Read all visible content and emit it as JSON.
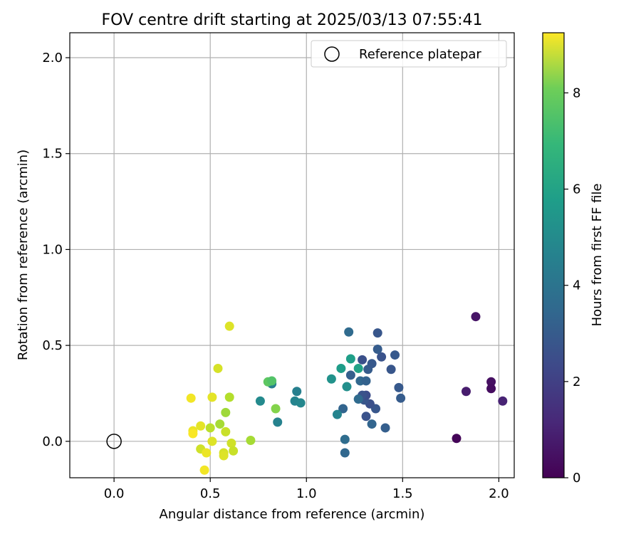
{
  "chart_data": {
    "type": "scatter",
    "title": "FOV centre drift starting at 2025/03/13 07:55:41",
    "xlabel": "Angular distance from reference (arcmin)",
    "ylabel": "Rotation from reference (arcmin)",
    "xlim": [
      -0.23,
      2.08
    ],
    "ylim": [
      -0.19,
      2.13
    ],
    "xticks": [
      0.0,
      0.5,
      1.0,
      1.5,
      2.0
    ],
    "xtick_labels": [
      "0.0",
      "0.5",
      "1.0",
      "1.5",
      "2.0"
    ],
    "yticks": [
      0.0,
      0.5,
      1.0,
      1.5,
      2.0
    ],
    "ytick_labels": [
      "0.0",
      "0.5",
      "1.0",
      "1.5",
      "2.0"
    ],
    "grid": true,
    "legend": {
      "position": "top-right",
      "entries": [
        "Reference platepar"
      ]
    },
    "reference_point": {
      "x": 0.0,
      "y": 0.0,
      "label": "Reference platepar"
    },
    "colorbar": {
      "label": "Hours from first FF file",
      "colormap": "viridis",
      "range": [
        0,
        9.25
      ],
      "ticks": [
        0,
        2,
        4,
        6,
        8
      ],
      "tick_labels": [
        "0",
        "2",
        "4",
        "6",
        "8"
      ]
    },
    "points": [
      {
        "x": 1.78,
        "y": 0.015,
        "h": 0.1
      },
      {
        "x": 1.88,
        "y": 0.65,
        "h": 0.5
      },
      {
        "x": 1.83,
        "y": 0.26,
        "h": 0.7
      },
      {
        "x": 1.96,
        "y": 0.31,
        "h": 0.4
      },
      {
        "x": 1.96,
        "y": 0.275,
        "h": 0.3
      },
      {
        "x": 2.02,
        "y": 0.21,
        "h": 0.9
      },
      {
        "x": 1.37,
        "y": 0.565,
        "h": 2.5
      },
      {
        "x": 1.46,
        "y": 0.45,
        "h": 2.6
      },
      {
        "x": 1.39,
        "y": 0.44,
        "h": 2.4
      },
      {
        "x": 1.37,
        "y": 0.48,
        "h": 2.7
      },
      {
        "x": 1.44,
        "y": 0.375,
        "h": 2.5
      },
      {
        "x": 1.48,
        "y": 0.28,
        "h": 2.6
      },
      {
        "x": 1.49,
        "y": 0.225,
        "h": 2.7
      },
      {
        "x": 1.41,
        "y": 0.07,
        "h": 2.8
      },
      {
        "x": 1.34,
        "y": 0.09,
        "h": 3.0
      },
      {
        "x": 1.31,
        "y": 0.13,
        "h": 2.4
      },
      {
        "x": 1.36,
        "y": 0.17,
        "h": 2.5
      },
      {
        "x": 1.33,
        "y": 0.195,
        "h": 2.3
      },
      {
        "x": 1.3,
        "y": 0.215,
        "h": 2.5
      },
      {
        "x": 1.31,
        "y": 0.24,
        "h": 2.2
      },
      {
        "x": 1.29,
        "y": 0.24,
        "h": 2.4
      },
      {
        "x": 1.27,
        "y": 0.22,
        "h": 3.2
      },
      {
        "x": 1.28,
        "y": 0.315,
        "h": 3.1
      },
      {
        "x": 1.31,
        "y": 0.315,
        "h": 2.9
      },
      {
        "x": 1.32,
        "y": 0.375,
        "h": 2.7
      },
      {
        "x": 1.34,
        "y": 0.405,
        "h": 2.6
      },
      {
        "x": 1.29,
        "y": 0.425,
        "h": 2.3
      },
      {
        "x": 1.23,
        "y": 0.345,
        "h": 2.8
      },
      {
        "x": 1.22,
        "y": 0.57,
        "h": 3.2
      },
      {
        "x": 1.27,
        "y": 0.38,
        "h": 5.3
      },
      {
        "x": 1.23,
        "y": 0.43,
        "h": 5.2
      },
      {
        "x": 1.18,
        "y": 0.38,
        "h": 5.1
      },
      {
        "x": 1.13,
        "y": 0.325,
        "h": 4.7
      },
      {
        "x": 1.21,
        "y": 0.285,
        "h": 4.6
      },
      {
        "x": 1.19,
        "y": 0.17,
        "h": 3.0
      },
      {
        "x": 1.16,
        "y": 0.14,
        "h": 4.2
      },
      {
        "x": 1.2,
        "y": 0.01,
        "h": 3.3
      },
      {
        "x": 1.2,
        "y": -0.06,
        "h": 3.1
      },
      {
        "x": 0.95,
        "y": 0.26,
        "h": 4.0
      },
      {
        "x": 0.94,
        "y": 0.21,
        "h": 4.2
      },
      {
        "x": 0.97,
        "y": 0.2,
        "h": 4.3
      },
      {
        "x": 0.85,
        "y": 0.1,
        "h": 4.1
      },
      {
        "x": 0.82,
        "y": 0.3,
        "h": 4.0
      },
      {
        "x": 0.76,
        "y": 0.21,
        "h": 4.4
      },
      {
        "x": 0.8,
        "y": 0.31,
        "h": 6.9
      },
      {
        "x": 0.82,
        "y": 0.315,
        "h": 6.7
      },
      {
        "x": 0.84,
        "y": 0.17,
        "h": 7.5
      },
      {
        "x": 0.71,
        "y": 0.005,
        "h": 8.0
      },
      {
        "x": 0.6,
        "y": 0.23,
        "h": 8.2
      },
      {
        "x": 0.58,
        "y": 0.15,
        "h": 7.9
      },
      {
        "x": 0.55,
        "y": 0.09,
        "h": 8.0
      },
      {
        "x": 0.5,
        "y": 0.07,
        "h": 8.3
      },
      {
        "x": 0.58,
        "y": 0.05,
        "h": 8.5
      },
      {
        "x": 0.6,
        "y": 0.6,
        "h": 8.8
      },
      {
        "x": 0.54,
        "y": 0.38,
        "h": 8.7
      },
      {
        "x": 0.51,
        "y": 0.23,
        "h": 8.9
      },
      {
        "x": 0.4,
        "y": 0.225,
        "h": 9.1
      },
      {
        "x": 0.45,
        "y": 0.08,
        "h": 8.9
      },
      {
        "x": 0.41,
        "y": 0.055,
        "h": 9.0
      },
      {
        "x": 0.41,
        "y": 0.04,
        "h": 9.2
      },
      {
        "x": 0.51,
        "y": 0.0,
        "h": 8.8
      },
      {
        "x": 0.61,
        "y": -0.01,
        "h": 8.6
      },
      {
        "x": 0.62,
        "y": -0.05,
        "h": 8.5
      },
      {
        "x": 0.57,
        "y": -0.06,
        "h": 8.7
      },
      {
        "x": 0.57,
        "y": -0.075,
        "h": 8.8
      },
      {
        "x": 0.45,
        "y": -0.04,
        "h": 8.6
      },
      {
        "x": 0.48,
        "y": -0.06,
        "h": 9.0
      },
      {
        "x": 0.47,
        "y": -0.15,
        "h": 9.1
      }
    ]
  }
}
